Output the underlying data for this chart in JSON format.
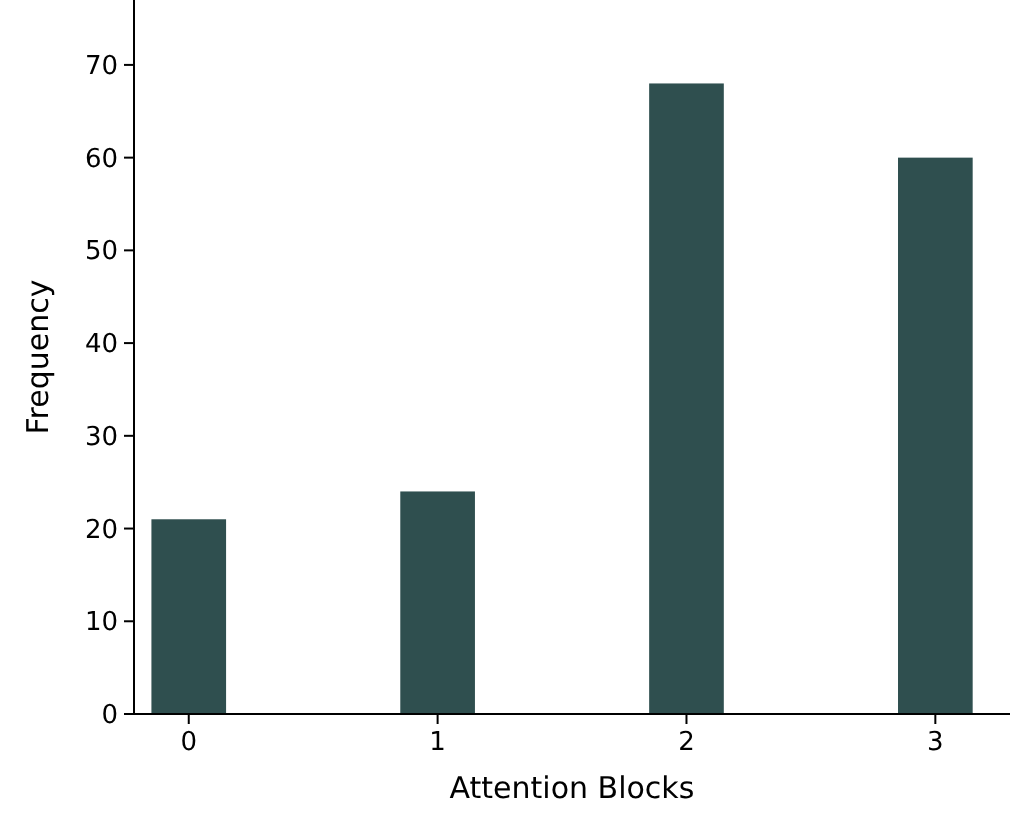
{
  "chart_data": {
    "type": "bar",
    "xlabel": "Attention Blocks",
    "ylabel": "Frequency",
    "categories": [
      "0",
      "1",
      "2",
      "3"
    ],
    "values": [
      21,
      24,
      68,
      60
    ],
    "color": "#2f4f4f",
    "ylim": [
      0,
      77
    ],
    "yticks": [
      0,
      10,
      20,
      30,
      40,
      50,
      60,
      70
    ],
    "grid": false
  }
}
